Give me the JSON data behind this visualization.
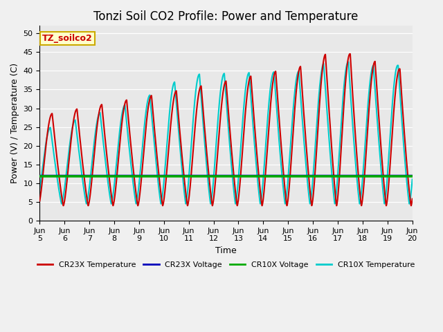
{
  "title": "Tonzi Soil CO2 Profile: Power and Temperature",
  "ylabel": "Power (V) / Temperature (C)",
  "xlabel": "Time",
  "watermark": "TZ_soilco2",
  "xlim_start": 5.0,
  "xlim_end": 20.0,
  "ylim": [
    0,
    52
  ],
  "yticks": [
    0,
    5,
    10,
    15,
    20,
    25,
    30,
    35,
    40,
    45,
    50
  ],
  "xtick_labels": [
    "Jun 5",
    "Jun 6",
    "Jun 7",
    "Jun 8",
    "Jun 9",
    "Jun 10",
    "Jun 11",
    "Jun 12",
    "Jun 13",
    "Jun 14",
    "Jun 15",
    "Jun 16",
    "Jun 17",
    "Jun 18",
    "Jun 19",
    "Jun 20"
  ],
  "xtick_positions": [
    5,
    6,
    7,
    8,
    9,
    10,
    11,
    12,
    13,
    14,
    15,
    16,
    17,
    18,
    19,
    20
  ],
  "cr23x_voltage_value": 12.0,
  "cr10x_voltage_value": 11.85,
  "background_color": "#e8e8e8",
  "plot_bg_color": "#e8e8e8",
  "fig_bg_color": "#f0f0f0",
  "legend_items": [
    {
      "label": "CR23X Temperature",
      "color": "#cc0000",
      "lw": 1.5
    },
    {
      "label": "CR23X Voltage",
      "color": "#0000bb",
      "lw": 2.0
    },
    {
      "label": "CR10X Voltage",
      "color": "#00aa00",
      "lw": 2.5
    },
    {
      "label": "CR10X Temperature",
      "color": "#00cccc",
      "lw": 1.5
    }
  ],
  "title_fontsize": 12,
  "axis_label_fontsize": 9,
  "tick_fontsize": 8
}
